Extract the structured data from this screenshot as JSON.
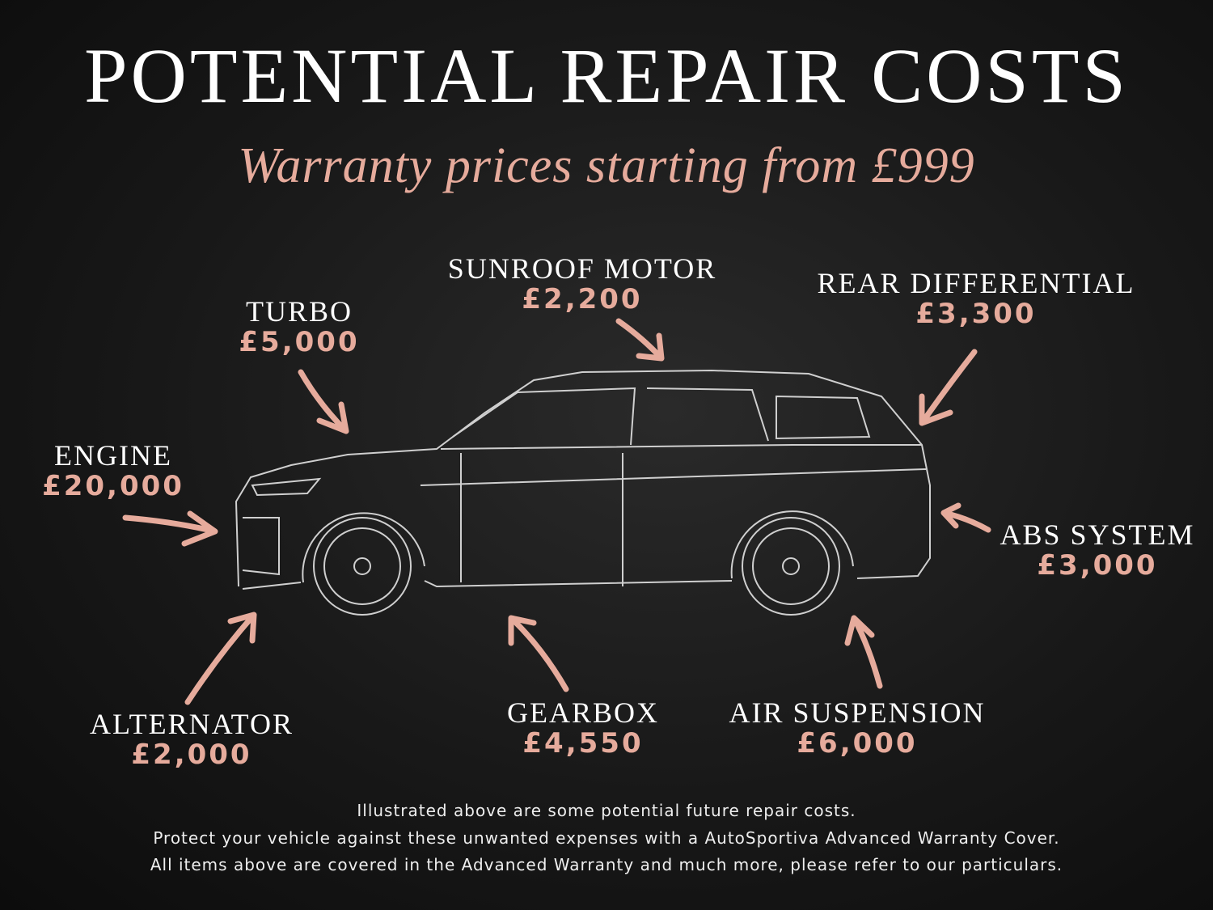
{
  "title": "POTENTIAL REPAIR COSTS",
  "subtitle": "Warranty prices starting from £999",
  "accent_color": "#e6ab9c",
  "parts": [
    {
      "name": "TURBO",
      "price": "£5,000"
    },
    {
      "name": "SUNROOF MOTOR",
      "price": "£2,200"
    },
    {
      "name": "REAR DIFFERENTIAL",
      "price": "£3,300"
    },
    {
      "name": "ENGINE",
      "price": "£20,000"
    },
    {
      "name": "ABS SYSTEM",
      "price": "£3,000"
    },
    {
      "name": "ALTERNATOR",
      "price": "£2,000"
    },
    {
      "name": "GEARBOX",
      "price": "£4,550"
    },
    {
      "name": "AIR SUSPENSION",
      "price": "£6,000"
    }
  ],
  "footer": [
    "Illustrated above are some potential future repair costs.",
    "Protect your vehicle against these unwanted expenses with a AutoSportiva Advanced Warranty Cover.",
    "All items above are covered in the Advanced Warranty and much more, please refer to our particulars."
  ]
}
